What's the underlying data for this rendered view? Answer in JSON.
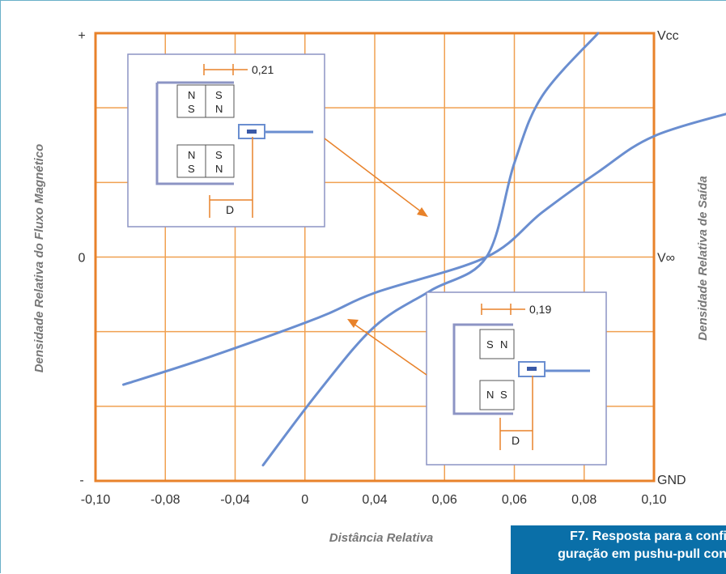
{
  "chart_data": {
    "type": "line",
    "xlabel": "Distância Relativa",
    "ylabel_left": "Densidade Relativa do Fluxo Magnético",
    "ylabel_right": "Densidade Relativa de Saída",
    "x_tick_labels": [
      "-0,10",
      "-0,08",
      "-0,04",
      "0",
      "0,04",
      "0,06",
      "0,06",
      "0,08",
      "0,10"
    ],
    "y_left_tick_labels": [
      "+",
      "0",
      "-"
    ],
    "y_right_tick_labels": [
      "Vcc",
      "V∞",
      "GND"
    ],
    "xlim": [
      -0.1,
      0.1
    ],
    "ylim": [
      -1,
      1
    ],
    "grid": true,
    "series": [
      {
        "values": [
          {
            "x": -0.04,
            "y": -0.93
          },
          {
            "x": -0.02,
            "y": -0.6
          },
          {
            "x": 0.0,
            "y": -0.31
          },
          {
            "x": 0.02,
            "y": -0.15
          },
          {
            "x": 0.04,
            "y": 0.0
          },
          {
            "x": 0.05,
            "y": 0.42
          },
          {
            "x": 0.06,
            "y": 0.72
          },
          {
            "x": 0.08,
            "y": 1.0
          }
        ]
      },
      {
        "values": [
          {
            "x": -0.09,
            "y": -0.57
          },
          {
            "x": -0.06,
            "y": -0.45
          },
          {
            "x": -0.02,
            "y": -0.27
          },
          {
            "x": 0.0,
            "y": -0.16
          },
          {
            "x": 0.04,
            "y": 0.0
          },
          {
            "x": 0.06,
            "y": 0.2
          },
          {
            "x": 0.08,
            "y": 0.38
          },
          {
            "x": 0.1,
            "y": 0.54
          },
          {
            "x": 0.132,
            "y": 0.66
          }
        ]
      }
    ],
    "insets": [
      {
        "dimension": "0,21",
        "distance_label": "D",
        "magnets": [
          [
            "N",
            "S",
            "S",
            "N"
          ],
          [
            "N",
            "S",
            "S",
            "N"
          ]
        ]
      },
      {
        "dimension": "0,19",
        "distance_label": "D",
        "magnets": [
          [
            "S",
            "N"
          ],
          [
            "N",
            "S"
          ]
        ]
      }
    ]
  },
  "caption": {
    "line1": "F7. Resposta para a confi",
    "line2": "guração em pushu-pull con"
  },
  "colors": {
    "grid": "#f0a050",
    "frame": "#e8822a",
    "curve": "#6a8ed0",
    "caption_bg": "#0a6fa8"
  }
}
